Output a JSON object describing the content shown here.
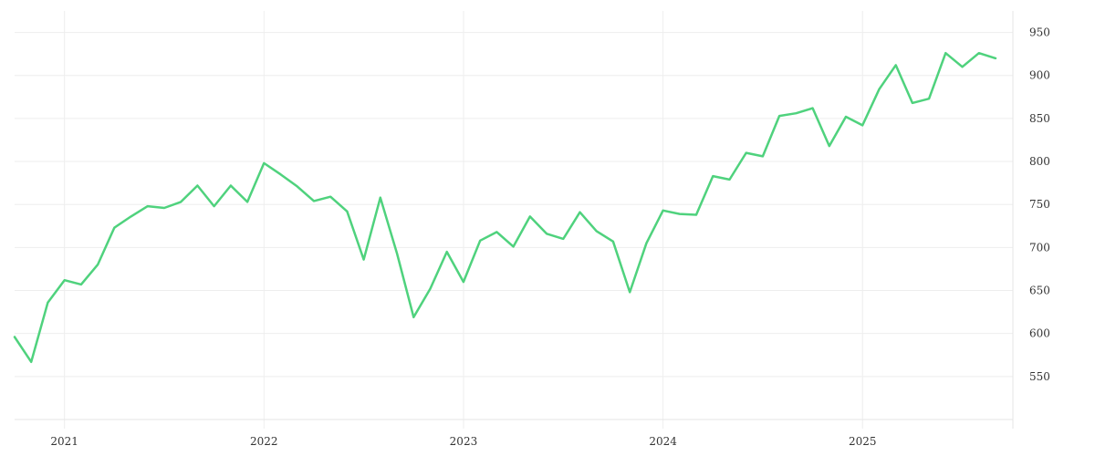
{
  "chart_data": {
    "type": "line",
    "x_start": "2020-10",
    "x_frequency": "monthly",
    "x_ticks": [
      "2021",
      "2022",
      "2023",
      "2024",
      "2025"
    ],
    "y_ticks": [
      550,
      600,
      650,
      700,
      750,
      800,
      850,
      900,
      950
    ],
    "y_axis_side": "right",
    "xlim": [
      "2020-10",
      "2025-09"
    ],
    "ylim": [
      500,
      975
    ],
    "grid": true,
    "series": [
      {
        "color": "#4fd27d",
        "values": [
          596,
          567,
          636,
          662,
          657,
          680,
          723,
          736,
          748,
          746,
          753,
          772,
          748,
          772,
          753,
          798,
          785,
          771,
          754,
          759,
          742,
          686,
          758,
          693,
          619,
          652,
          695,
          660,
          708,
          718,
          701,
          736,
          716,
          710,
          741,
          719,
          707,
          648,
          705,
          743,
          739,
          738,
          783,
          779,
          810,
          806,
          853,
          856,
          862,
          818,
          852,
          842,
          884,
          912,
          868,
          873,
          926,
          910,
          926,
          920
        ]
      }
    ]
  }
}
